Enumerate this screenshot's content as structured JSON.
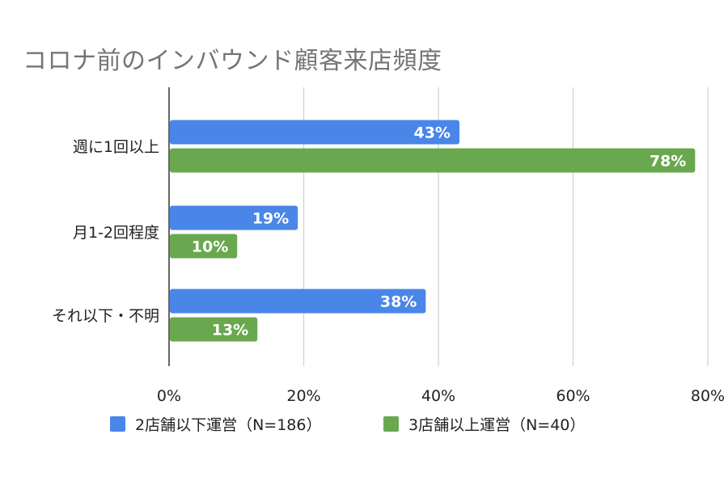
{
  "title": "コロナ前のインバウンド顧客来店頻度",
  "colors": {
    "series1": "#4a86e8",
    "series2": "#6aa84f",
    "grid": "#d0d0d0",
    "axis": "#333333"
  },
  "chart_data": {
    "type": "bar",
    "orientation": "horizontal",
    "title": "コロナ前のインバウンド顧客来店頻度",
    "categories": [
      "週に1回以上",
      "月1-2回程度",
      "それ以下・不明"
    ],
    "series": [
      {
        "name": "2店舗以下運営（N=186）",
        "values": [
          43,
          19,
          38
        ],
        "labels": [
          "43%",
          "19%",
          "38%"
        ]
      },
      {
        "name": "3店舗以上運営（N=40）",
        "values": [
          78,
          10,
          13
        ],
        "labels": [
          "78%",
          "10%",
          "13%"
        ]
      }
    ],
    "xlim": [
      0,
      80
    ],
    "xticks": [
      "0%",
      "20%",
      "40%",
      "60%",
      "80%"
    ],
    "xlabel": "",
    "ylabel": "",
    "grid": true,
    "legend_position": "bottom"
  }
}
